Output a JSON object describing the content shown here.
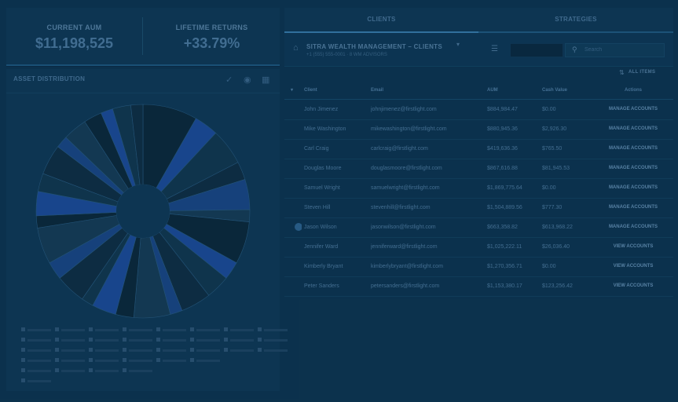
{
  "kpis": {
    "aum_label": "CURRENT AUM",
    "aum_value": "$11,198,525",
    "returns_label": "LIFETIME RETURNS",
    "returns_value": "+33.79%"
  },
  "asset": {
    "title": "ASSET DISTRIBUTION",
    "icons": [
      "check-icon",
      "target-icon",
      "grid-icon"
    ]
  },
  "tabs": {
    "clients": "CLIENTS",
    "strategies": "STRATEGIES"
  },
  "client_header": {
    "title": "SITRA WEALTH MANAGEMENT – CLIENTS",
    "subtitle": "+1 (555) 555-0001 · 8 WM ADVISORS"
  },
  "search": {
    "placeholder": "Search"
  },
  "all_items": "ALL ITEMS",
  "table": {
    "headers": {
      "client": "Client",
      "email": "Email",
      "aum": "AUM",
      "cash": "Cash Value",
      "action": "Actions"
    },
    "rows": [
      {
        "client": "John Jimenez",
        "email": "johnjimenez@firstlight.com",
        "aum": "$884,984.47",
        "cash": "$0.00",
        "action": "MANAGE ACCOUNTS",
        "selected": false
      },
      {
        "client": "Mike Washington",
        "email": "mikewashington@firstlight.com",
        "aum": "$880,945.36",
        "cash": "$2,926.30",
        "action": "MANAGE ACCOUNTS",
        "selected": false
      },
      {
        "client": "Carl Craig",
        "email": "carlcraig@firstlight.com",
        "aum": "$419,636.36",
        "cash": "$765.50",
        "action": "MANAGE ACCOUNTS",
        "selected": false
      },
      {
        "client": "Douglas Moore",
        "email": "douglasmoore@firstlight.com",
        "aum": "$867,616.88",
        "cash": "$81,945.53",
        "action": "MANAGE ACCOUNTS",
        "selected": false
      },
      {
        "client": "Samuel Wright",
        "email": "samuelwright@firstlight.com",
        "aum": "$1,869,775.64",
        "cash": "$0.00",
        "action": "MANAGE ACCOUNTS",
        "selected": false
      },
      {
        "client": "Steven Hill",
        "email": "stevenhill@firstlight.com",
        "aum": "$1,504,889.56",
        "cash": "$777.30",
        "action": "MANAGE ACCOUNTS",
        "selected": false
      },
      {
        "client": "Jason Wilson",
        "email": "jasonwilson@firstlight.com",
        "aum": "$663,358.82",
        "cash": "$613,968.22",
        "action": "MANAGE ACCOUNTS",
        "selected": true
      },
      {
        "client": "Jennifer Ward",
        "email": "jenniferward@firstlight.com",
        "aum": "$1,025,222.11",
        "cash": "$26,036.40",
        "action": "VIEW ACCOUNTS",
        "selected": false
      },
      {
        "client": "Kimberly Bryant",
        "email": "kimberlybryant@firstlight.com",
        "aum": "$1,270,356.71",
        "cash": "$0.00",
        "action": "VIEW ACCOUNTS",
        "selected": false
      },
      {
        "client": "Peter Sanders",
        "email": "petersanders@firstlight.com",
        "aum": "$1,153,380.17",
        "cash": "$123,256.42",
        "action": "VIEW ACCOUNTS",
        "selected": false
      }
    ]
  },
  "colors": {
    "background": "#0d3653",
    "panel": "#0f3b5a",
    "accent": "#3b83b5",
    "pie_dark": "#0b2a3c",
    "pie_blue": "#1d4fa0"
  },
  "pie_shares": [
    0.09,
    0.04,
    0.06,
    0.03,
    0.05,
    0.02,
    0.07,
    0.03,
    0.04,
    0.05,
    0.02,
    0.06,
    0.03,
    0.04,
    0.02,
    0.05,
    0.03,
    0.06,
    0.02,
    0.04,
    0.03,
    0.05,
    0.02,
    0.04,
    0.03,
    0.02,
    0.03,
    0.02
  ]
}
